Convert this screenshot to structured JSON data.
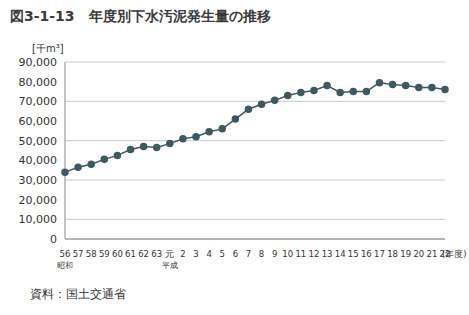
{
  "chart_data": {
    "type": "line",
    "title": "図3-1-13　年度別下水汚泥発生量の推移",
    "y_label": "[千m³]",
    "x_label": "(年度)",
    "source": "資料：国土交通省",
    "categories": [
      "56",
      "57",
      "58",
      "59",
      "60",
      "61",
      "62",
      "63",
      "元",
      "2",
      "3",
      "4",
      "5",
      "6",
      "7",
      "8",
      "9",
      "10",
      "11",
      "12",
      "13",
      "14",
      "15",
      "16",
      "17",
      "18",
      "19",
      "20",
      "21",
      "22"
    ],
    "era_labels": [
      {
        "category": "56",
        "label": "昭和"
      },
      {
        "category": "元",
        "label": "平成"
      }
    ],
    "values": [
      34000,
      36500,
      38000,
      40500,
      42500,
      45500,
      47000,
      46500,
      48500,
      51000,
      52000,
      54500,
      56000,
      61000,
      66000,
      68500,
      70500,
      73000,
      74500,
      75500,
      78000,
      74500,
      75000,
      75000,
      79500,
      78500,
      78000,
      77000,
      77000,
      76000
    ],
    "color": "#3b5a62",
    "marker": "circle",
    "ylim": [
      0,
      90000
    ],
    "yticks": [
      0,
      {
        "value": 10000,
        "label": "10,000"
      },
      {
        "value": 20000,
        "label": "20,000"
      },
      {
        "value": 30000,
        "label": "30,000"
      },
      {
        "value": 40000,
        "label": "40,000"
      },
      {
        "value": 50000,
        "label": "50,000"
      },
      {
        "value": 60000,
        "label": "60,000"
      },
      {
        "value": 70000,
        "label": "70,000"
      },
      {
        "value": 80000,
        "label": "80,000"
      },
      {
        "value": 90000,
        "label": "90,000"
      }
    ],
    "grid": true
  }
}
